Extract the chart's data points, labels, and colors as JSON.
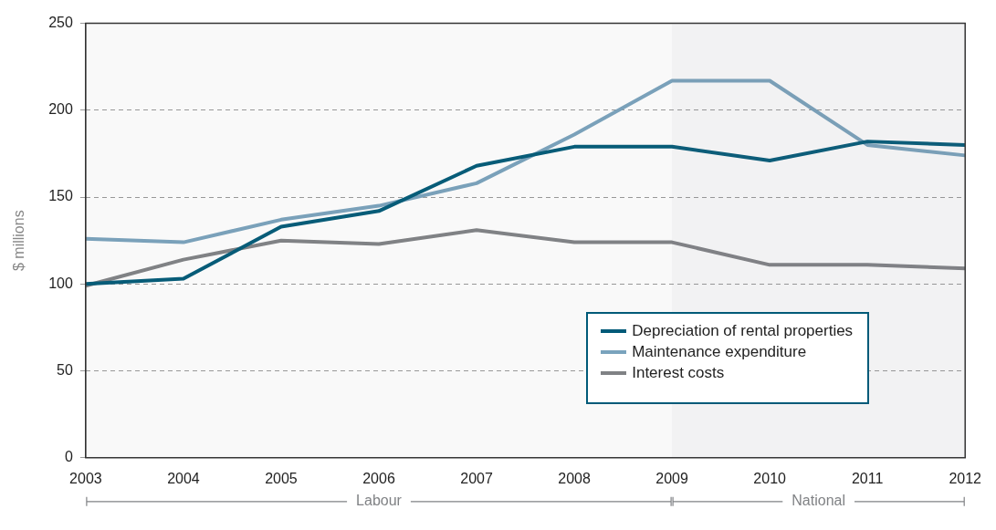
{
  "chart_data": {
    "type": "line",
    "ylabel": "$ millions",
    "x": [
      2003,
      2004,
      2005,
      2006,
      2007,
      2008,
      2009,
      2010,
      2011,
      2012
    ],
    "xlim": [
      2003,
      2012
    ],
    "xticks": [
      2003,
      2004,
      2005,
      2006,
      2007,
      2008,
      2009,
      2010,
      2011,
      2012
    ],
    "ylim": [
      0,
      250
    ],
    "yticks": [
      0,
      50,
      100,
      150,
      200,
      250
    ],
    "grid": "y",
    "legend": "bottom right",
    "marker": "none",
    "line_style": "solid",
    "series": [
      {
        "name": "Depreciation of rental properties",
        "color": "#005a78",
        "values": [
          100,
          103,
          133,
          142,
          168,
          179,
          179,
          171,
          182,
          180
        ]
      },
      {
        "name": "Maintenance expenditure",
        "color": "#7aa3bd",
        "values": [
          126,
          124,
          137,
          145,
          158,
          186,
          217,
          217,
          180,
          174
        ]
      },
      {
        "name": "Interest costs",
        "color": "#808285",
        "values": [
          99,
          114,
          125,
          123,
          131,
          124,
          124,
          111,
          111,
          109
        ]
      }
    ],
    "bands": [
      {
        "axis": "x",
        "from": 2003,
        "to": 2009,
        "label": "Labour",
        "color": "#808285"
      },
      {
        "axis": "x",
        "from": 2009,
        "to": 2012,
        "label": "National",
        "color": "#808285"
      }
    ]
  }
}
